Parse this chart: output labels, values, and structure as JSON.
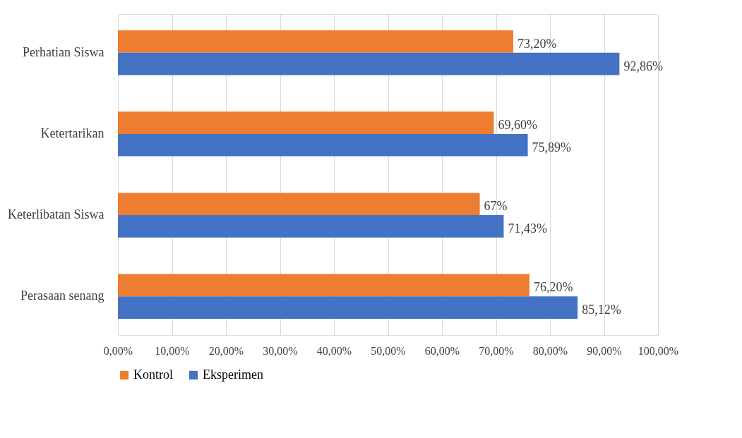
{
  "chart_data": {
    "type": "bar",
    "orientation": "horizontal",
    "categories": [
      "Perhatian Siswa",
      "Ketertarikan",
      "Keterlibatan Siswa",
      "Perasaan senang"
    ],
    "series": [
      {
        "name": "Kontrol",
        "color": "#ed7d31",
        "values": [
          73.2,
          69.6,
          67,
          76.2
        ],
        "value_labels": [
          "73,20%",
          "69,60%",
          "67%",
          "76,20%"
        ]
      },
      {
        "name": "Eksperimen",
        "color": "#4472c4",
        "values": [
          92.86,
          75.89,
          71.43,
          85.12
        ],
        "value_labels": [
          "92,86%",
          "75,89%",
          "71,43%",
          "85,12%"
        ]
      }
    ],
    "xlim": [
      0,
      100
    ],
    "xticks": [
      {
        "value": 0,
        "label": "0,00%"
      },
      {
        "value": 10,
        "label": "10,00%"
      },
      {
        "value": 20,
        "label": "20,00%"
      },
      {
        "value": 30,
        "label": "30,00%"
      },
      {
        "value": 40,
        "label": "40,00%"
      },
      {
        "value": 50,
        "label": "50,00%"
      },
      {
        "value": 60,
        "label": "60,00%"
      },
      {
        "value": 70,
        "label": "70,00%"
      },
      {
        "value": 80,
        "label": "80,00%"
      },
      {
        "value": 90,
        "label": "90,00%"
      },
      {
        "value": 100,
        "label": "100,00%"
      }
    ],
    "grid": "x",
    "legend": "bottom"
  }
}
